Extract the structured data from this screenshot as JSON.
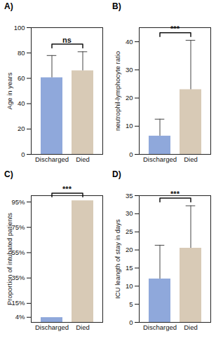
{
  "chart_data": [
    {
      "type": "bar",
      "title": "A)",
      "ylabel": "Age in years",
      "categories": [
        "Discharged",
        "Died"
      ],
      "values": [
        60.5,
        66
      ],
      "errors": [
        17.5,
        15
      ],
      "colors": [
        "#8fa8db",
        "#d8cab6"
      ],
      "ylim": [
        0,
        100
      ],
      "yticks": [
        0,
        20,
        40,
        60,
        80,
        100
      ],
      "annotation": "ns"
    },
    {
      "type": "bar",
      "title": "B)",
      "ylabel": "neutrophil-lymphocyte ratio",
      "categories": [
        "Discharged",
        "Died"
      ],
      "values": [
        6.5,
        23
      ],
      "errors": [
        6,
        17.5
      ],
      "colors": [
        "#8fa8db",
        "#d8cab6"
      ],
      "ylim": [
        0,
        45
      ],
      "yticks": [
        0,
        10,
        20,
        30,
        40
      ],
      "annotation": "***"
    },
    {
      "type": "bar",
      "title": "C)",
      "ylabel": "Proportion of intubated patients",
      "categories": [
        "Discharged",
        "Died"
      ],
      "values": [
        3.8,
        96
      ],
      "colors": [
        "#8fa8db",
        "#d8cab6"
      ],
      "ylim": [
        0,
        100
      ],
      "yticks": [
        {
          "value": 4,
          "label": "4%"
        },
        {
          "value": 15,
          "label": "15%"
        },
        {
          "value": 35,
          "label": "35%"
        },
        {
          "value": 55,
          "label": "55%"
        },
        {
          "value": 75,
          "label": "75%"
        },
        {
          "value": 95,
          "label": "95%"
        }
      ],
      "annotation": "***"
    },
    {
      "type": "bar",
      "title": "D)",
      "ylabel": "ICU leangth of stay in days",
      "categories": [
        "Discharged",
        "Died"
      ],
      "values": [
        12,
        20.5
      ],
      "errors": [
        9.3,
        11.7
      ],
      "colors": [
        "#8fa8db",
        "#d8cab6"
      ],
      "ylim": [
        0,
        35
      ],
      "yticks": [
        0,
        5,
        10,
        15,
        20,
        25,
        30,
        35
      ],
      "annotation": "***"
    }
  ]
}
